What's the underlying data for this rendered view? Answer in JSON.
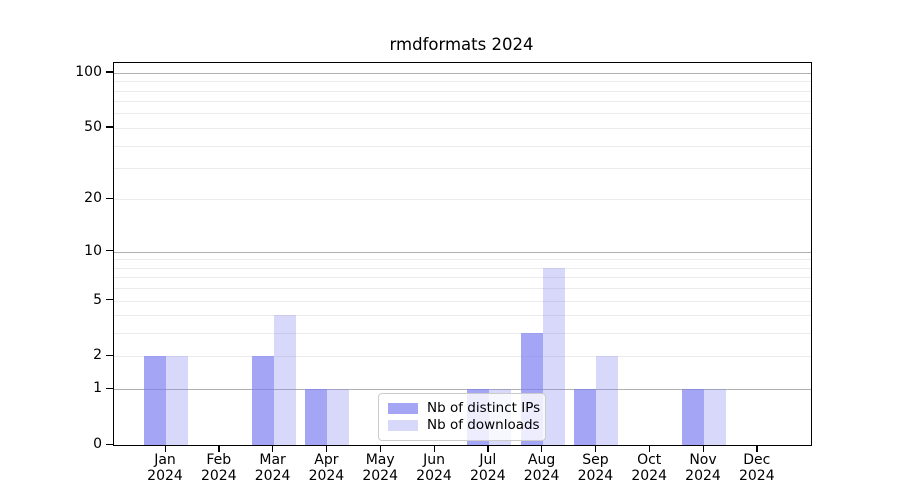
{
  "title": "rmdformats 2024",
  "legend": {
    "items": [
      {
        "label": "Nb of distinct IPs",
        "color": "rgba(127,127,242,0.7)"
      },
      {
        "label": "Nb of downloads",
        "color": "rgba(127,127,242,0.3)"
      }
    ],
    "position": "lower center"
  },
  "colors": {
    "bar_base": "#7f7ff2",
    "bar_ips_on_white": "#a5a5f6",
    "bar_downloads_on_white": "#d8d8fb",
    "grid_major": "#b0b0b0",
    "grid_minor": "#ebebeb",
    "spine": "#000000"
  },
  "chart_data": {
    "type": "bar",
    "title": "rmdformats 2024",
    "categories": [
      "Jan 2024",
      "Feb 2024",
      "Mar 2024",
      "Apr 2024",
      "May 2024",
      "Jun 2024",
      "Jul 2024",
      "Aug 2024",
      "Sep 2024",
      "Oct 2024",
      "Nov 2024",
      "Dec 2024"
    ],
    "series": [
      {
        "name": "Nb of distinct IPs",
        "color": "rgba(127,127,242,0.7)",
        "values": [
          2,
          0,
          2,
          1,
          0,
          0,
          1,
          3,
          1,
          0,
          1,
          0
        ]
      },
      {
        "name": "Nb of downloads",
        "color": "rgba(127,127,242,0.3)",
        "values": [
          2,
          0,
          4,
          1,
          0,
          0,
          1,
          8,
          2,
          0,
          1,
          0
        ]
      }
    ],
    "xlabel": "",
    "ylabel": "",
    "yscale": "log1p",
    "yticks": [
      0,
      1,
      2,
      5,
      10,
      20,
      50,
      100
    ],
    "grid_major_at": [
      1,
      10,
      100
    ],
    "grid_minor_at": [
      2,
      3,
      4,
      5,
      6,
      7,
      8,
      9,
      20,
      30,
      40,
      50,
      60,
      70,
      80,
      90
    ],
    "ylim": [
      0,
      113
    ],
    "grid": "horizontal only",
    "legend_position": "lower center"
  }
}
